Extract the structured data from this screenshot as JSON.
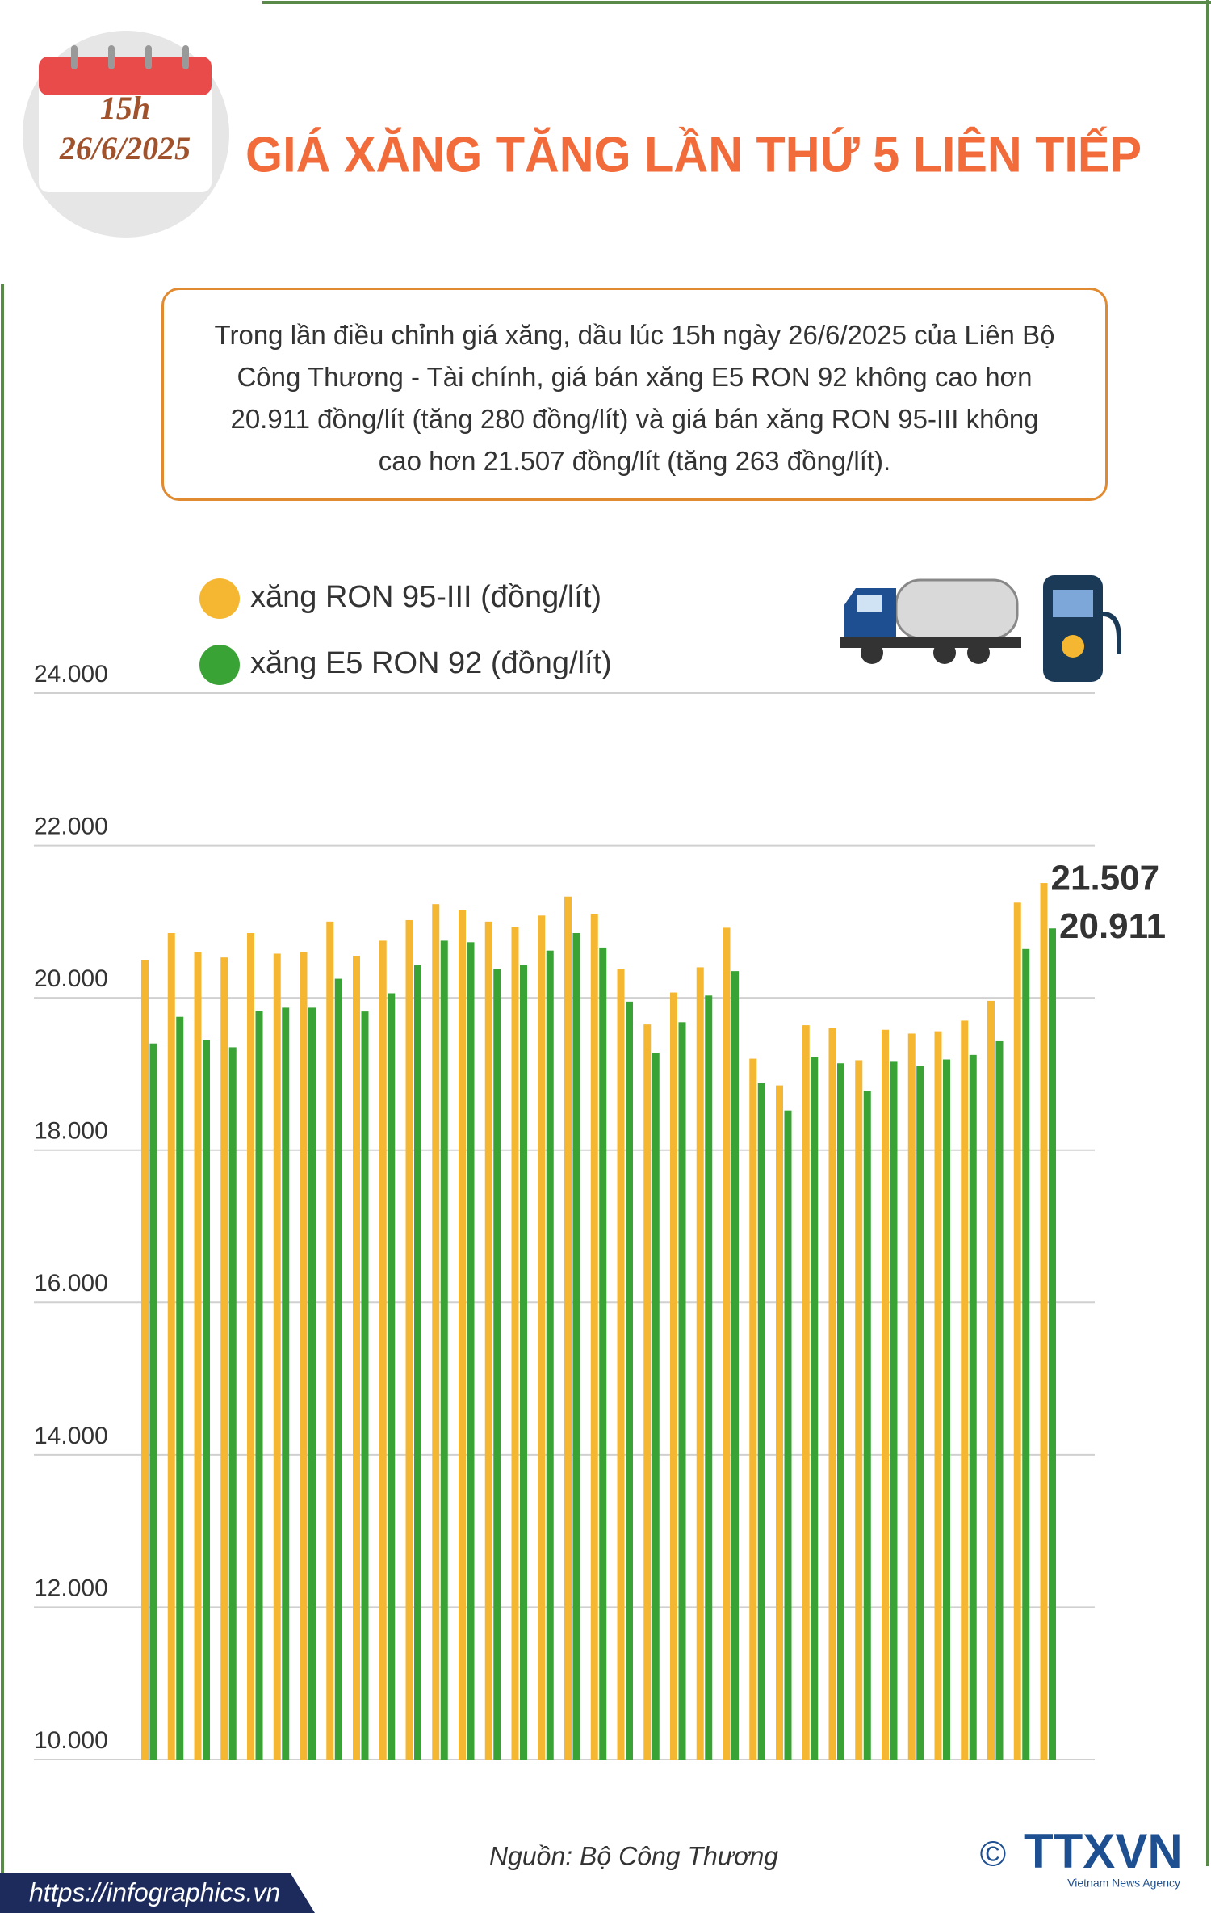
{
  "header": {
    "time": "15h",
    "date": "26/6/2025",
    "title": "GIÁ XĂNG TĂNG LẦN THỨ 5 LIÊN TIẾP"
  },
  "summary": "Trong lần điều chỉnh giá xăng, dầu lúc 15h ngày 26/6/2025 của Liên Bộ Công Thương - Tài chính, giá bán xăng E5 RON 92 không cao hơn 20.911 đồng/lít (tăng 280 đồng/lít) và giá bán xăng RON 95-III không cao hơn 21.507 đồng/lít (tăng 263 đồng/lít).",
  "chart_data": {
    "type": "bar",
    "ylim": [
      10000,
      24000
    ],
    "yticks": [
      {
        "value": 10000,
        "label": "10.000"
      },
      {
        "value": 12000,
        "label": "12.000"
      },
      {
        "value": 14000,
        "label": "14.000"
      },
      {
        "value": 16000,
        "label": "16.000"
      },
      {
        "value": 18000,
        "label": "18.000"
      },
      {
        "value": 20000,
        "label": "20.000"
      },
      {
        "value": 22000,
        "label": "22.000"
      },
      {
        "value": 24000,
        "label": "24.000"
      }
    ],
    "grid": true,
    "series": [
      {
        "name": "xăng RON 95-III (đồng/lít)",
        "color": "#f5b731",
        "values": [
          20500,
          20850,
          20600,
          20530,
          20850,
          20580,
          20600,
          21000,
          20550,
          20750,
          21020,
          21230,
          21150,
          21000,
          20930,
          21080,
          21330,
          21100,
          20380,
          19650,
          20070,
          20400,
          20920,
          19200,
          18850,
          19640,
          19600,
          19180,
          19580,
          19530,
          19560,
          19700,
          19960,
          21250,
          21507
        ],
        "value_labels": [
          null,
          null,
          null,
          null,
          null,
          null,
          null,
          null,
          null,
          null,
          null,
          null,
          null,
          null,
          null,
          null,
          null,
          null,
          null,
          null,
          null,
          null,
          null,
          null,
          null,
          null,
          null,
          null,
          null,
          null,
          null,
          null,
          null,
          null,
          "21.507"
        ]
      },
      {
        "name": "xăng E5 RON 92 (đồng/lít)",
        "color": "#3aa335",
        "values": [
          19400,
          19750,
          19450,
          19350,
          19830,
          19870,
          19870,
          20250,
          19820,
          20060,
          20430,
          20750,
          20730,
          20380,
          20430,
          20620,
          20850,
          20660,
          19950,
          19280,
          19680,
          20030,
          20350,
          18880,
          18520,
          19220,
          19140,
          18780,
          19170,
          19110,
          19190,
          19250,
          19440,
          20640,
          20911
        ],
        "value_labels": [
          null,
          null,
          null,
          null,
          null,
          null,
          null,
          null,
          null,
          null,
          null,
          null,
          null,
          null,
          null,
          null,
          null,
          null,
          null,
          null,
          null,
          null,
          null,
          null,
          null,
          null,
          null,
          null,
          null,
          null,
          null,
          null,
          null,
          null,
          "20.911"
        ]
      }
    ]
  },
  "footer": {
    "source": "Nguồn: Bộ Công Thương",
    "website": "https://infographics.vn",
    "logo": "TTXVN",
    "logo_sub": "Vietnam News Agency",
    "copyright": "©"
  }
}
